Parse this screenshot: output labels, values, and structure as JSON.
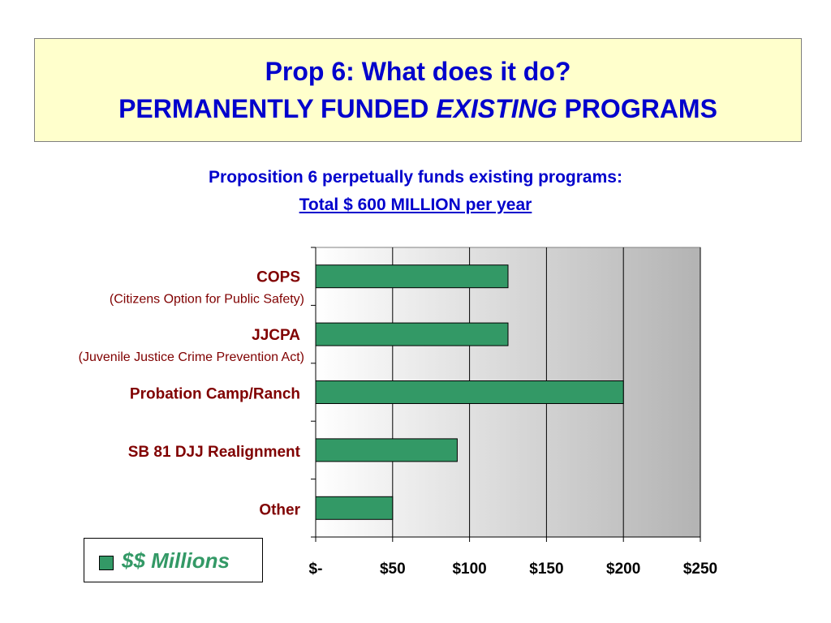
{
  "header": {
    "title_line1": "Prop 6:  What does it do?",
    "title_line2_a": "PERMANENTLY FUNDED",
    "title_line2_b": "EXISTING",
    "title_line2_c": "PROGRAMS"
  },
  "subtitle": {
    "line1": "Proposition 6 perpetually funds existing programs:",
    "line2": "Total $ 600 MILLION per year"
  },
  "legend": {
    "label": "$$ Millions"
  },
  "colors": {
    "title_text": "#0000cc",
    "title_bg": "#ffffcc",
    "category_text": "#800000",
    "bar_fill": "#339966",
    "legend_text": "#339966"
  },
  "chart_data": {
    "type": "bar",
    "orientation": "horizontal",
    "categories": [
      {
        "name": "COPS",
        "sub": "(Citizens Option for Public Safety)"
      },
      {
        "name": "JJCPA",
        "sub": "(Juvenile Justice Crime Prevention Act)"
      },
      {
        "name": "Probation Camp/Ranch",
        "sub": ""
      },
      {
        "name": "SB 81 DJJ Realignment",
        "sub": ""
      },
      {
        "name": "Other",
        "sub": ""
      }
    ],
    "series": [
      {
        "name": "$$ Millions",
        "values": [
          125,
          125,
          200,
          92,
          50
        ]
      }
    ],
    "xlim": [
      0,
      250
    ],
    "xticks": [
      0,
      50,
      100,
      150,
      200,
      250
    ],
    "xtick_labels": [
      "$-",
      "$50",
      "$100",
      "$150",
      "$200",
      "$250"
    ],
    "grid": true,
    "legend_position": "bottom-left"
  }
}
